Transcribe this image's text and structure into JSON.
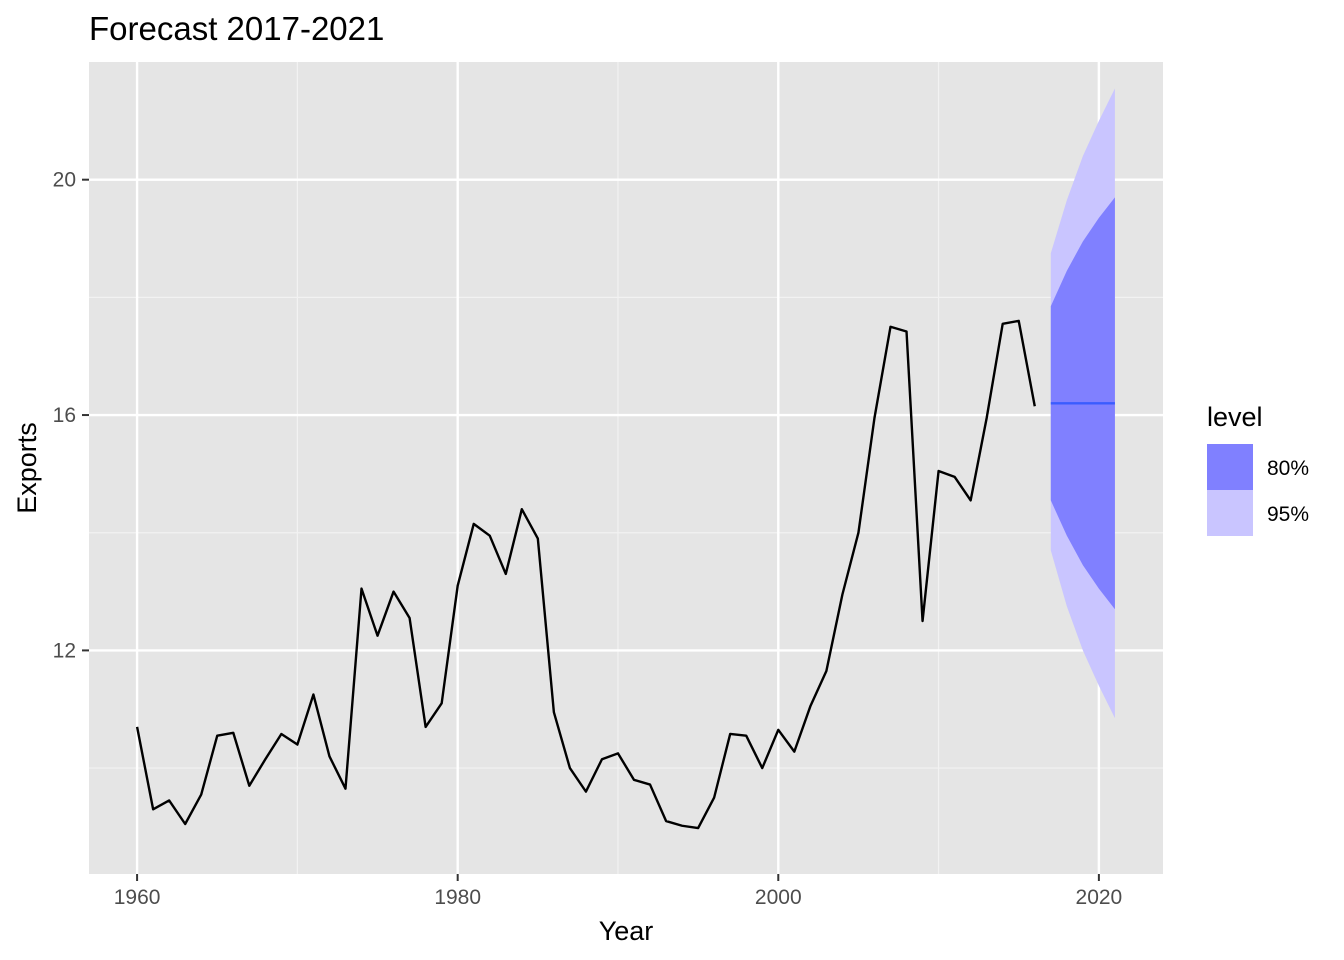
{
  "chart_data": {
    "type": "line",
    "title": "Forecast 2017-2021",
    "xlabel": "Year",
    "ylabel": "Exports",
    "xlim": [
      1957,
      2024
    ],
    "ylim": [
      8.2,
      22.0
    ],
    "x_ticks": [
      1960,
      1980,
      2000,
      2020
    ],
    "x_tick_labels": [
      "1960",
      "1980",
      "2000",
      "2020"
    ],
    "y_ticks": [
      12,
      16,
      20
    ],
    "y_tick_labels": [
      "12",
      "16",
      "20"
    ],
    "grid": true,
    "legend": {
      "position": "right",
      "title": "level",
      "entries": [
        {
          "label": "80%",
          "color": "#8080ff"
        },
        {
          "label": "95%",
          "color": "#c9c5ff"
        }
      ]
    },
    "series": [
      {
        "kind": "history",
        "color": "#000000",
        "x": [
          1960,
          1961,
          1962,
          1963,
          1964,
          1965,
          1966,
          1967,
          1968,
          1969,
          1970,
          1971,
          1972,
          1973,
          1974,
          1975,
          1976,
          1977,
          1978,
          1979,
          1980,
          1981,
          1982,
          1983,
          1984,
          1985,
          1986,
          1987,
          1988,
          1989,
          1990,
          1991,
          1992,
          1993,
          1994,
          1995,
          1996,
          1997,
          1998,
          1999,
          2000,
          2001,
          2002,
          2003,
          2004,
          2005,
          2006,
          2007,
          2008,
          2009,
          2010,
          2011,
          2012,
          2013,
          2014,
          2015,
          2016
        ],
        "values": [
          10.7,
          9.3,
          9.45,
          9.05,
          9.55,
          10.55,
          10.6,
          9.7,
          10.15,
          10.58,
          10.4,
          11.25,
          10.2,
          9.65,
          13.05,
          12.25,
          13.0,
          12.55,
          10.7,
          11.1,
          13.1,
          14.15,
          13.95,
          13.3,
          14.4,
          13.9,
          10.95,
          10.0,
          9.6,
          10.15,
          10.25,
          9.8,
          9.72,
          9.1,
          9.02,
          8.98,
          9.5,
          10.58,
          10.55,
          10.0,
          10.65,
          10.28,
          11.05,
          11.65,
          12.95,
          14.0,
          15.95,
          17.5,
          17.42,
          12.5,
          15.05,
          14.95,
          14.55,
          15.95,
          17.55,
          17.6,
          16.15
        ]
      },
      {
        "kind": "forecast",
        "color": "#3a5cff",
        "x": [
          2017,
          2018,
          2019,
          2020,
          2021
        ],
        "values": [
          16.2,
          16.2,
          16.2,
          16.2,
          16.2
        ],
        "lo80": [
          14.55,
          13.95,
          13.45,
          13.05,
          12.7
        ],
        "hi80": [
          17.85,
          18.45,
          18.95,
          19.35,
          19.7
        ],
        "lo95": [
          13.7,
          12.75,
          12.0,
          11.4,
          10.85
        ],
        "hi95": [
          18.75,
          19.65,
          20.4,
          21.0,
          21.55
        ]
      }
    ]
  }
}
